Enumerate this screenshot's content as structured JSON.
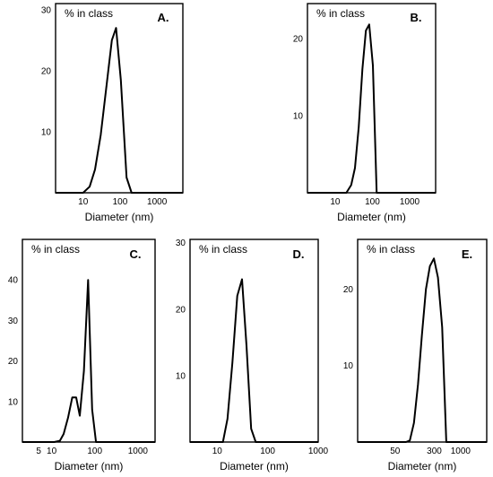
{
  "chart_data": [
    {
      "id": "A",
      "type": "line",
      "panel_label": "A.",
      "inset_label": "% in class",
      "xlabel": "Diameter (nm)",
      "xscale": "log",
      "xlim": [
        1.8,
        5000
      ],
      "ylim": [
        0,
        31
      ],
      "xticks": [
        {
          "value": 10,
          "label": "10"
        },
        {
          "value": 100,
          "label": "100"
        },
        {
          "value": 1000,
          "label": "1000"
        }
      ],
      "yticks": [
        {
          "value": 10,
          "label": "10"
        },
        {
          "value": 20,
          "label": "20"
        },
        {
          "value": 30,
          "label": "30"
        }
      ],
      "x": [
        1.8,
        10,
        15,
        21,
        30,
        43,
        60,
        78,
        105,
        150,
        205,
        5000
      ],
      "y": [
        0,
        0,
        1,
        3.8,
        9.5,
        17.5,
        25,
        27,
        18.5,
        2.5,
        0,
        0
      ]
    },
    {
      "id": "B",
      "type": "line",
      "panel_label": "B.",
      "inset_label": "% in class",
      "xlabel": "Diameter (nm)",
      "xscale": "log",
      "xlim": [
        1.8,
        5000
      ],
      "ylim": [
        0,
        24.5
      ],
      "xticks": [
        {
          "value": 10,
          "label": "10"
        },
        {
          "value": 100,
          "label": "100"
        },
        {
          "value": 1000,
          "label": "1000"
        }
      ],
      "yticks": [
        {
          "value": 10,
          "label": "10"
        },
        {
          "value": 20,
          "label": "20"
        }
      ],
      "x": [
        1.8,
        20,
        27,
        34,
        43,
        54,
        67,
        82,
        103,
        130,
        5000
      ],
      "y": [
        0,
        0,
        1,
        3.2,
        8.5,
        16,
        21,
        21.8,
        16.5,
        0,
        0
      ]
    },
    {
      "id": "C",
      "type": "line",
      "panel_label": "C.",
      "inset_label": "% in class",
      "xlabel": "Diameter (nm)",
      "xscale": "log",
      "xlim": [
        2.1,
        2500
      ],
      "ylim": [
        0,
        50
      ],
      "xticks": [
        {
          "value": 5,
          "label": "5"
        },
        {
          "value": 10,
          "label": "10"
        },
        {
          "value": 100,
          "label": "100"
        },
        {
          "value": 1000,
          "label": "1000"
        }
      ],
      "yticks": [
        {
          "value": 10,
          "label": "10"
        },
        {
          "value": 20,
          "label": "20"
        },
        {
          "value": 30,
          "label": "30"
        },
        {
          "value": 40,
          "label": "40"
        }
      ],
      "x": [
        2.1,
        11.5,
        15.5,
        19,
        24,
        30,
        37,
        45,
        56,
        70,
        87,
        107,
        132,
        2500
      ],
      "y": [
        0,
        0,
        0.3,
        2,
        6,
        11,
        11,
        6.5,
        17.5,
        40,
        8,
        0,
        0,
        0
      ]
    },
    {
      "id": "D",
      "type": "line",
      "panel_label": "D.",
      "inset_label": "% in class",
      "xlabel": "Diameter (nm)",
      "xscale": "log",
      "xlim": [
        2.9,
        1000
      ],
      "ylim": [
        0,
        30.5
      ],
      "xticks": [
        {
          "value": 10,
          "label": "10"
        },
        {
          "value": 100,
          "label": "100"
        },
        {
          "value": 1000,
          "label": "1000"
        }
      ],
      "yticks": [
        {
          "value": 10,
          "label": "10"
        },
        {
          "value": 20,
          "label": "20"
        },
        {
          "value": 30,
          "label": "30"
        }
      ],
      "x": [
        2.9,
        10,
        13,
        16,
        20,
        25,
        31,
        38,
        47,
        58,
        1000
      ],
      "y": [
        0,
        0,
        0,
        3.5,
        12,
        22,
        24.5,
        14.5,
        2,
        0,
        0
      ]
    },
    {
      "id": "E",
      "type": "line",
      "panel_label": "E.",
      "inset_label": "% in class",
      "xlabel": "Diameter (nm)",
      "xscale": "log",
      "xlim": [
        9,
        3300
      ],
      "ylim": [
        0,
        26.5
      ],
      "xticks": [
        {
          "value": 50,
          "label": "50"
        },
        {
          "value": 300,
          "label": "300"
        },
        {
          "value": 1000,
          "label": "1000"
        }
      ],
      "yticks": [
        {
          "value": 10,
          "label": "10"
        },
        {
          "value": 20,
          "label": "20"
        }
      ],
      "x": [
        9,
        82,
        98,
        118,
        142,
        170,
        205,
        245,
        295,
        355,
        430,
        520,
        3300
      ],
      "y": [
        0,
        0,
        0.2,
        2.5,
        7.5,
        14,
        20,
        23,
        24,
        21.5,
        15,
        0,
        0
      ]
    }
  ]
}
